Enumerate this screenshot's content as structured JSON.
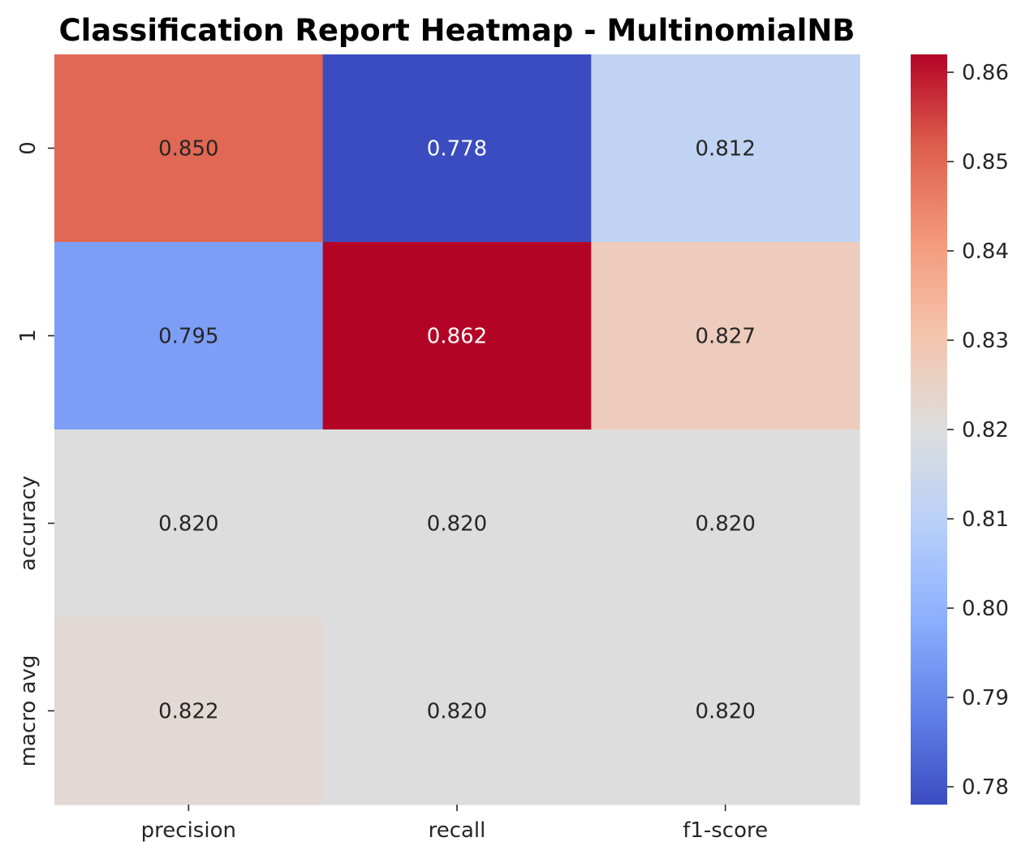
{
  "chart_data": {
    "type": "heatmap",
    "title": "Classification Report Heatmap - MultinomialNB",
    "xlabel": "",
    "ylabel": "",
    "columns": [
      "precision",
      "recall",
      "f1-score"
    ],
    "rows": [
      "0",
      "1",
      "accuracy",
      "macro avg"
    ],
    "values": [
      [
        0.85,
        0.778,
        0.812
      ],
      [
        0.795,
        0.862,
        0.827
      ],
      [
        0.82,
        0.82,
        0.82
      ],
      [
        0.822,
        0.82,
        0.82
      ]
    ],
    "value_labels": [
      [
        "0.850",
        "0.778",
        "0.812"
      ],
      [
        "0.795",
        "0.862",
        "0.827"
      ],
      [
        "0.820",
        "0.820",
        "0.820"
      ],
      [
        "0.822",
        "0.820",
        "0.820"
      ]
    ],
    "colormap": "coolwarm",
    "vmin": 0.778,
    "vmax": 0.862,
    "colorbar_ticks": [
      "0.78",
      "0.79",
      "0.80",
      "0.81",
      "0.82",
      "0.83",
      "0.84",
      "0.85",
      "0.86"
    ],
    "colorbar_tick_values": [
      0.78,
      0.79,
      0.8,
      0.81,
      0.82,
      0.83,
      0.84,
      0.85,
      0.86
    ],
    "grid": false,
    "legend": "colorbar-right"
  }
}
